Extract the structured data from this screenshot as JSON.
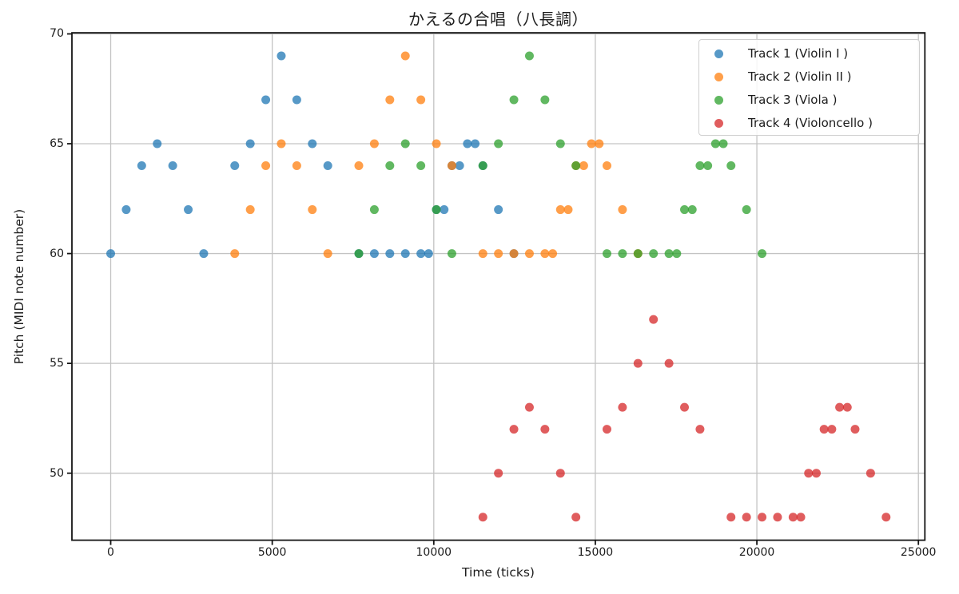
{
  "title": "かえるの合唱（八長調）",
  "axes": {
    "x": {
      "label": "Time (ticks)",
      "ticks": [
        0,
        5000,
        10000,
        15000,
        20000,
        25000
      ]
    },
    "y": {
      "label": "Pitch (MIDI note number)",
      "ticks": [
        50,
        55,
        60,
        65,
        70
      ]
    }
  },
  "style": {
    "background": "#ffffff",
    "grid_color": "#c3c3c3",
    "spine_color": "#141414",
    "text_color": "#1d1d1d",
    "marker_alpha": 0.75,
    "marker_radius": 5.5
  },
  "chart_data": {
    "type": "scatter",
    "title": "かえるの合唱（八長調）",
    "xlabel": "Time (ticks)",
    "ylabel": "Pitch (MIDI note number)",
    "xlim": [
      -1200,
      25200
    ],
    "ylim": [
      46.95,
      70.05
    ],
    "xticks": [
      0,
      5000,
      10000,
      15000,
      20000,
      25000
    ],
    "yticks": [
      50,
      55,
      60,
      65,
      70
    ],
    "grid": true,
    "legend_position": "upper right",
    "series": [
      {
        "name": "Track 1 (Violin I )",
        "color": "#1f77b4",
        "points": [
          [
            0,
            60
          ],
          [
            480,
            62
          ],
          [
            960,
            64
          ],
          [
            1440,
            65
          ],
          [
            1920,
            64
          ],
          [
            2400,
            62
          ],
          [
            2880,
            60
          ],
          [
            3840,
            64
          ],
          [
            4320,
            65
          ],
          [
            4800,
            67
          ],
          [
            5280,
            69
          ],
          [
            5760,
            67
          ],
          [
            6240,
            65
          ],
          [
            6720,
            64
          ],
          [
            7680,
            60
          ],
          [
            8160,
            60
          ],
          [
            8640,
            60
          ],
          [
            9120,
            60
          ],
          [
            9600,
            60
          ],
          [
            9840,
            60
          ],
          [
            10080,
            62
          ],
          [
            10320,
            62
          ],
          [
            10560,
            64
          ],
          [
            10800,
            64
          ],
          [
            11040,
            65
          ],
          [
            11280,
            65
          ],
          [
            11520,
            64
          ],
          [
            12000,
            62
          ],
          [
            12480,
            60
          ]
        ]
      },
      {
        "name": "Track 2 (Violin II )",
        "color": "#ff7f0e",
        "points": [
          [
            3840,
            60
          ],
          [
            4320,
            62
          ],
          [
            4800,
            64
          ],
          [
            5280,
            65
          ],
          [
            5760,
            64
          ],
          [
            6240,
            62
          ],
          [
            6720,
            60
          ],
          [
            7680,
            64
          ],
          [
            8160,
            65
          ],
          [
            8640,
            67
          ],
          [
            9120,
            69
          ],
          [
            9600,
            67
          ],
          [
            10080,
            65
          ],
          [
            10560,
            64
          ],
          [
            11520,
            60
          ],
          [
            12000,
            60
          ],
          [
            12480,
            60
          ],
          [
            12960,
            60
          ],
          [
            13440,
            60
          ],
          [
            13680,
            60
          ],
          [
            13920,
            62
          ],
          [
            14160,
            62
          ],
          [
            14400,
            64
          ],
          [
            14640,
            64
          ],
          [
            14880,
            65
          ],
          [
            15120,
            65
          ],
          [
            15360,
            64
          ],
          [
            15840,
            62
          ],
          [
            16320,
            60
          ]
        ]
      },
      {
        "name": "Track 3 (Viola )",
        "color": "#2ca02c",
        "points": [
          [
            7680,
            60
          ],
          [
            8160,
            62
          ],
          [
            8640,
            64
          ],
          [
            9120,
            65
          ],
          [
            9600,
            64
          ],
          [
            10080,
            62
          ],
          [
            10560,
            60
          ],
          [
            11520,
            64
          ],
          [
            12000,
            65
          ],
          [
            12480,
            67
          ],
          [
            12960,
            69
          ],
          [
            13440,
            67
          ],
          [
            13920,
            65
          ],
          [
            14400,
            64
          ],
          [
            15360,
            60
          ],
          [
            15840,
            60
          ],
          [
            16320,
            60
          ],
          [
            16800,
            60
          ],
          [
            17280,
            60
          ],
          [
            17520,
            60
          ],
          [
            17760,
            62
          ],
          [
            18000,
            62
          ],
          [
            18240,
            64
          ],
          [
            18480,
            64
          ],
          [
            18720,
            65
          ],
          [
            18960,
            65
          ],
          [
            19200,
            64
          ],
          [
            19680,
            62
          ],
          [
            20160,
            60
          ]
        ]
      },
      {
        "name": "Track 4 (Violoncello )",
        "color": "#d62728",
        "points": [
          [
            11520,
            48
          ],
          [
            12000,
            50
          ],
          [
            12480,
            52
          ],
          [
            12960,
            53
          ],
          [
            13440,
            52
          ],
          [
            13920,
            50
          ],
          [
            14400,
            48
          ],
          [
            15360,
            52
          ],
          [
            15840,
            53
          ],
          [
            16320,
            55
          ],
          [
            16800,
            57
          ],
          [
            17280,
            55
          ],
          [
            17760,
            53
          ],
          [
            18240,
            52
          ],
          [
            19200,
            48
          ],
          [
            19680,
            48
          ],
          [
            20160,
            48
          ],
          [
            20640,
            48
          ],
          [
            21120,
            48
          ],
          [
            21360,
            48
          ],
          [
            21600,
            50
          ],
          [
            21840,
            50
          ],
          [
            22080,
            52
          ],
          [
            22320,
            52
          ],
          [
            22560,
            53
          ],
          [
            22800,
            53
          ],
          [
            23040,
            52
          ],
          [
            23520,
            50
          ],
          [
            24000,
            48
          ]
        ]
      }
    ]
  }
}
